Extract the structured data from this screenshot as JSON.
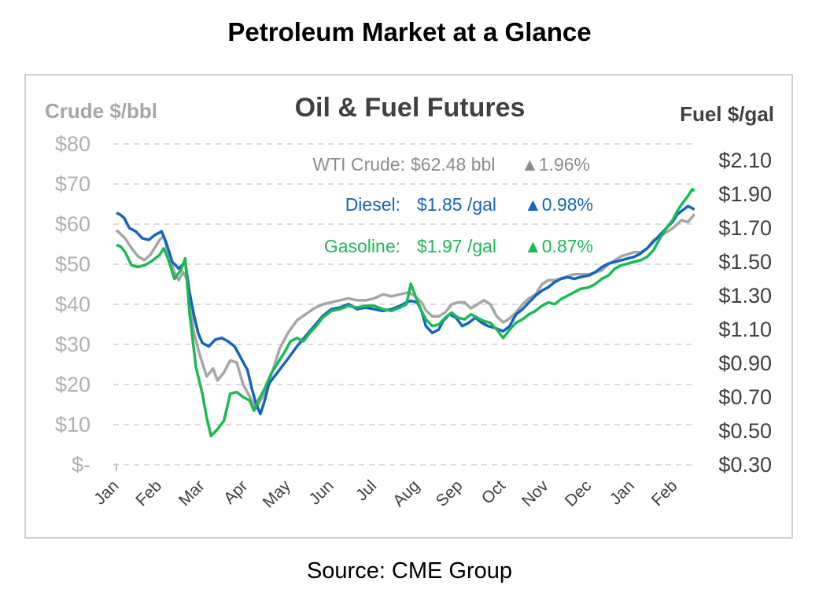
{
  "page_title": "Petroleum Market at a Glance",
  "source": "Source: CME Group",
  "chart_data": {
    "type": "line",
    "title": "Oil & Fuel Futures",
    "left_axis": {
      "label": "Crude $/bbl",
      "ticks": [
        "$-",
        "$10",
        "$20",
        "$30",
        "$40",
        "$50",
        "$60",
        "$70",
        "$80"
      ],
      "range": [
        0,
        80
      ]
    },
    "right_axis": {
      "label": "Fuel $/gal",
      "ticks": [
        "$0.30",
        "$0.50",
        "$0.70",
        "$0.90",
        "$1.10",
        "$1.30",
        "$1.50",
        "$1.70",
        "$1.90",
        "$2.10"
      ],
      "range": [
        0.3,
        2.1
      ]
    },
    "x_ticks": [
      "Jan",
      "Feb",
      "Mar",
      "Apr",
      "May",
      "Jun",
      "Jul",
      "Aug",
      "Sep",
      "Oct",
      "Nov",
      "Dec",
      "Jan",
      "Feb"
    ],
    "grid": "horizontal dashed",
    "legend": [
      {
        "label": "WTI Crude:",
        "value": "$62.48 bbl",
        "change": "▲1.96%",
        "color": "#8c8c8c"
      },
      {
        "label": "Diesel:",
        "value": "$1.85 /gal",
        "change": "▲0.98%",
        "color": "#1565c0"
      },
      {
        "label": "Gasoline:",
        "value": "$1.97 /gal",
        "change": "▲0.87%",
        "color": "#1db954"
      }
    ],
    "series": [
      {
        "name": "WTI Crude",
        "axis": "left",
        "color": "#a6a6a6",
        "points": [
          [
            0,
            58.5
          ],
          [
            0.1,
            57.5
          ],
          [
            0.2,
            56.5
          ],
          [
            0.35,
            54
          ],
          [
            0.5,
            52
          ],
          [
            0.65,
            51
          ],
          [
            0.8,
            52.5
          ],
          [
            1.0,
            56
          ],
          [
            1.1,
            57
          ],
          [
            1.2,
            53
          ],
          [
            1.35,
            48
          ],
          [
            1.45,
            46
          ],
          [
            1.55,
            48
          ],
          [
            1.65,
            46
          ],
          [
            1.8,
            33
          ],
          [
            1.95,
            27
          ],
          [
            2.1,
            22
          ],
          [
            2.25,
            24
          ],
          [
            2.35,
            21
          ],
          [
            2.5,
            23
          ],
          [
            2.65,
            26
          ],
          [
            2.8,
            25.5
          ],
          [
            2.95,
            20
          ],
          [
            3.05,
            18
          ],
          [
            3.15,
            16
          ],
          [
            3.25,
            14
          ],
          [
            3.35,
            16
          ],
          [
            3.5,
            19
          ],
          [
            3.65,
            24
          ],
          [
            3.8,
            29
          ],
          [
            4.0,
            33
          ],
          [
            4.2,
            36
          ],
          [
            4.4,
            37.5
          ],
          [
            4.6,
            39
          ],
          [
            4.8,
            40
          ],
          [
            5.0,
            40.5
          ],
          [
            5.2,
            41
          ],
          [
            5.4,
            41.5
          ],
          [
            5.6,
            41
          ],
          [
            5.8,
            41
          ],
          [
            6.0,
            41.5
          ],
          [
            6.2,
            42.5
          ],
          [
            6.4,
            42
          ],
          [
            6.6,
            42.5
          ],
          [
            6.8,
            43
          ],
          [
            6.95,
            42
          ],
          [
            7.1,
            40.5
          ],
          [
            7.2,
            38.5
          ],
          [
            7.35,
            37
          ],
          [
            7.5,
            37
          ],
          [
            7.65,
            38
          ],
          [
            7.8,
            40
          ],
          [
            7.95,
            40.5
          ],
          [
            8.1,
            40.5
          ],
          [
            8.25,
            39
          ],
          [
            8.4,
            40
          ],
          [
            8.55,
            41
          ],
          [
            8.7,
            40
          ],
          [
            8.85,
            37
          ],
          [
            9.0,
            35.5
          ],
          [
            9.15,
            36.5
          ],
          [
            9.3,
            38
          ],
          [
            9.45,
            40
          ],
          [
            9.6,
            41.5
          ],
          [
            9.75,
            42.5
          ],
          [
            9.9,
            45
          ],
          [
            10.05,
            46
          ],
          [
            10.2,
            46
          ],
          [
            10.35,
            46.5
          ],
          [
            10.5,
            47
          ],
          [
            10.65,
            47.5
          ],
          [
            10.8,
            47.5
          ],
          [
            11.0,
            47.5
          ],
          [
            11.15,
            48
          ],
          [
            11.3,
            48.5
          ],
          [
            11.45,
            50
          ],
          [
            11.6,
            51
          ],
          [
            11.75,
            52
          ],
          [
            11.9,
            52.5
          ],
          [
            12.05,
            53
          ],
          [
            12.2,
            53
          ],
          [
            12.35,
            54
          ],
          [
            12.5,
            56
          ],
          [
            12.65,
            57
          ],
          [
            12.8,
            58
          ],
          [
            12.95,
            59
          ],
          [
            13.05,
            60
          ],
          [
            13.15,
            61
          ],
          [
            13.3,
            60.5
          ],
          [
            13.45,
            62.5
          ]
        ]
      },
      {
        "name": "Diesel",
        "axis": "right",
        "color": "#1565c0",
        "points": [
          [
            0,
            1.79
          ],
          [
            0.08,
            1.78
          ],
          [
            0.18,
            1.76
          ],
          [
            0.3,
            1.7
          ],
          [
            0.45,
            1.68
          ],
          [
            0.6,
            1.64
          ],
          [
            0.75,
            1.63
          ],
          [
            0.9,
            1.66
          ],
          [
            1.05,
            1.68
          ],
          [
            1.15,
            1.62
          ],
          [
            1.3,
            1.5
          ],
          [
            1.45,
            1.46
          ],
          [
            1.6,
            1.5
          ],
          [
            1.7,
            1.32
          ],
          [
            1.8,
            1.19
          ],
          [
            1.9,
            1.08
          ],
          [
            2.0,
            1.02
          ],
          [
            2.15,
            1.0
          ],
          [
            2.3,
            1.04
          ],
          [
            2.45,
            1.05
          ],
          [
            2.6,
            1.03
          ],
          [
            2.75,
            1.0
          ],
          [
            2.9,
            0.93
          ],
          [
            3.05,
            0.86
          ],
          [
            3.15,
            0.75
          ],
          [
            3.25,
            0.66
          ],
          [
            3.35,
            0.6
          ],
          [
            3.45,
            0.68
          ],
          [
            3.55,
            0.78
          ],
          [
            3.7,
            0.83
          ],
          [
            3.85,
            0.88
          ],
          [
            4.0,
            0.93
          ],
          [
            4.2,
            1.0
          ],
          [
            4.4,
            1.06
          ],
          [
            4.6,
            1.12
          ],
          [
            4.8,
            1.18
          ],
          [
            5.0,
            1.22
          ],
          [
            5.2,
            1.23
          ],
          [
            5.4,
            1.25
          ],
          [
            5.6,
            1.22
          ],
          [
            5.8,
            1.23
          ],
          [
            6.0,
            1.22
          ],
          [
            6.2,
            1.21
          ],
          [
            6.4,
            1.22
          ],
          [
            6.6,
            1.24
          ],
          [
            6.75,
            1.26
          ],
          [
            6.85,
            1.27
          ],
          [
            7.0,
            1.26
          ],
          [
            7.1,
            1.21
          ],
          [
            7.2,
            1.12
          ],
          [
            7.35,
            1.08
          ],
          [
            7.5,
            1.1
          ],
          [
            7.6,
            1.15
          ],
          [
            7.75,
            1.19
          ],
          [
            7.9,
            1.17
          ],
          [
            8.05,
            1.12
          ],
          [
            8.2,
            1.14
          ],
          [
            8.35,
            1.17
          ],
          [
            8.5,
            1.14
          ],
          [
            8.65,
            1.12
          ],
          [
            8.8,
            1.11
          ],
          [
            9.0,
            1.09
          ],
          [
            9.15,
            1.12
          ],
          [
            9.3,
            1.19
          ],
          [
            9.45,
            1.22
          ],
          [
            9.6,
            1.26
          ],
          [
            9.75,
            1.3
          ],
          [
            9.9,
            1.33
          ],
          [
            10.05,
            1.35
          ],
          [
            10.2,
            1.38
          ],
          [
            10.35,
            1.4
          ],
          [
            10.5,
            1.41
          ],
          [
            10.65,
            1.4
          ],
          [
            10.8,
            1.41
          ],
          [
            11.0,
            1.42
          ],
          [
            11.15,
            1.44
          ],
          [
            11.3,
            1.47
          ],
          [
            11.45,
            1.49
          ],
          [
            11.6,
            1.5
          ],
          [
            11.75,
            1.51
          ],
          [
            11.9,
            1.52
          ],
          [
            12.05,
            1.53
          ],
          [
            12.2,
            1.55
          ],
          [
            12.35,
            1.58
          ],
          [
            12.5,
            1.62
          ],
          [
            12.65,
            1.66
          ],
          [
            12.8,
            1.7
          ],
          [
            12.95,
            1.74
          ],
          [
            13.05,
            1.78
          ],
          [
            13.15,
            1.8
          ],
          [
            13.3,
            1.83
          ],
          [
            13.45,
            1.81
          ]
        ]
      },
      {
        "name": "Gasoline",
        "axis": "right",
        "color": "#1db954",
        "points": [
          [
            0,
            1.6
          ],
          [
            0.1,
            1.59
          ],
          [
            0.2,
            1.56
          ],
          [
            0.35,
            1.48
          ],
          [
            0.5,
            1.47
          ],
          [
            0.65,
            1.48
          ],
          [
            0.8,
            1.5
          ],
          [
            1.0,
            1.54
          ],
          [
            1.1,
            1.58
          ],
          [
            1.2,
            1.52
          ],
          [
            1.35,
            1.4
          ],
          [
            1.5,
            1.45
          ],
          [
            1.6,
            1.52
          ],
          [
            1.7,
            1.2
          ],
          [
            1.85,
            0.88
          ],
          [
            2.0,
            0.72
          ],
          [
            2.1,
            0.58
          ],
          [
            2.2,
            0.47
          ],
          [
            2.35,
            0.51
          ],
          [
            2.5,
            0.56
          ],
          [
            2.65,
            0.72
          ],
          [
            2.8,
            0.73
          ],
          [
            2.95,
            0.7
          ],
          [
            3.1,
            0.68
          ],
          [
            3.2,
            0.62
          ],
          [
            3.3,
            0.68
          ],
          [
            3.45,
            0.75
          ],
          [
            3.6,
            0.84
          ],
          [
            3.75,
            0.9
          ],
          [
            3.9,
            0.96
          ],
          [
            4.05,
            1.03
          ],
          [
            4.2,
            1.05
          ],
          [
            4.35,
            1.03
          ],
          [
            4.5,
            1.08
          ],
          [
            4.65,
            1.12
          ],
          [
            4.8,
            1.17
          ],
          [
            5.0,
            1.21
          ],
          [
            5.2,
            1.22
          ],
          [
            5.4,
            1.24
          ],
          [
            5.6,
            1.23
          ],
          [
            5.8,
            1.24
          ],
          [
            6.0,
            1.24
          ],
          [
            6.2,
            1.22
          ],
          [
            6.4,
            1.21
          ],
          [
            6.6,
            1.23
          ],
          [
            6.75,
            1.25
          ],
          [
            6.85,
            1.37
          ],
          [
            7.0,
            1.27
          ],
          [
            7.1,
            1.21
          ],
          [
            7.2,
            1.16
          ],
          [
            7.35,
            1.12
          ],
          [
            7.5,
            1.13
          ],
          [
            7.65,
            1.17
          ],
          [
            7.8,
            1.2
          ],
          [
            7.95,
            1.17
          ],
          [
            8.1,
            1.16
          ],
          [
            8.25,
            1.19
          ],
          [
            8.4,
            1.17
          ],
          [
            8.55,
            1.15
          ],
          [
            8.7,
            1.14
          ],
          [
            8.85,
            1.1
          ],
          [
            9.0,
            1.05
          ],
          [
            9.15,
            1.1
          ],
          [
            9.3,
            1.14
          ],
          [
            9.45,
            1.16
          ],
          [
            9.6,
            1.19
          ],
          [
            9.75,
            1.21
          ],
          [
            9.9,
            1.24
          ],
          [
            10.05,
            1.26
          ],
          [
            10.2,
            1.25
          ],
          [
            10.35,
            1.28
          ],
          [
            10.5,
            1.3
          ],
          [
            10.65,
            1.32
          ],
          [
            10.8,
            1.34
          ],
          [
            11.0,
            1.35
          ],
          [
            11.15,
            1.37
          ],
          [
            11.3,
            1.4
          ],
          [
            11.45,
            1.42
          ],
          [
            11.6,
            1.46
          ],
          [
            11.75,
            1.48
          ],
          [
            11.9,
            1.49
          ],
          [
            12.05,
            1.5
          ],
          [
            12.2,
            1.51
          ],
          [
            12.35,
            1.53
          ],
          [
            12.5,
            1.57
          ],
          [
            12.65,
            1.64
          ],
          [
            12.8,
            1.7
          ],
          [
            12.95,
            1.75
          ],
          [
            13.05,
            1.8
          ],
          [
            13.15,
            1.84
          ],
          [
            13.3,
            1.89
          ],
          [
            13.4,
            1.93
          ],
          [
            13.45,
            1.92
          ]
        ]
      }
    ]
  }
}
